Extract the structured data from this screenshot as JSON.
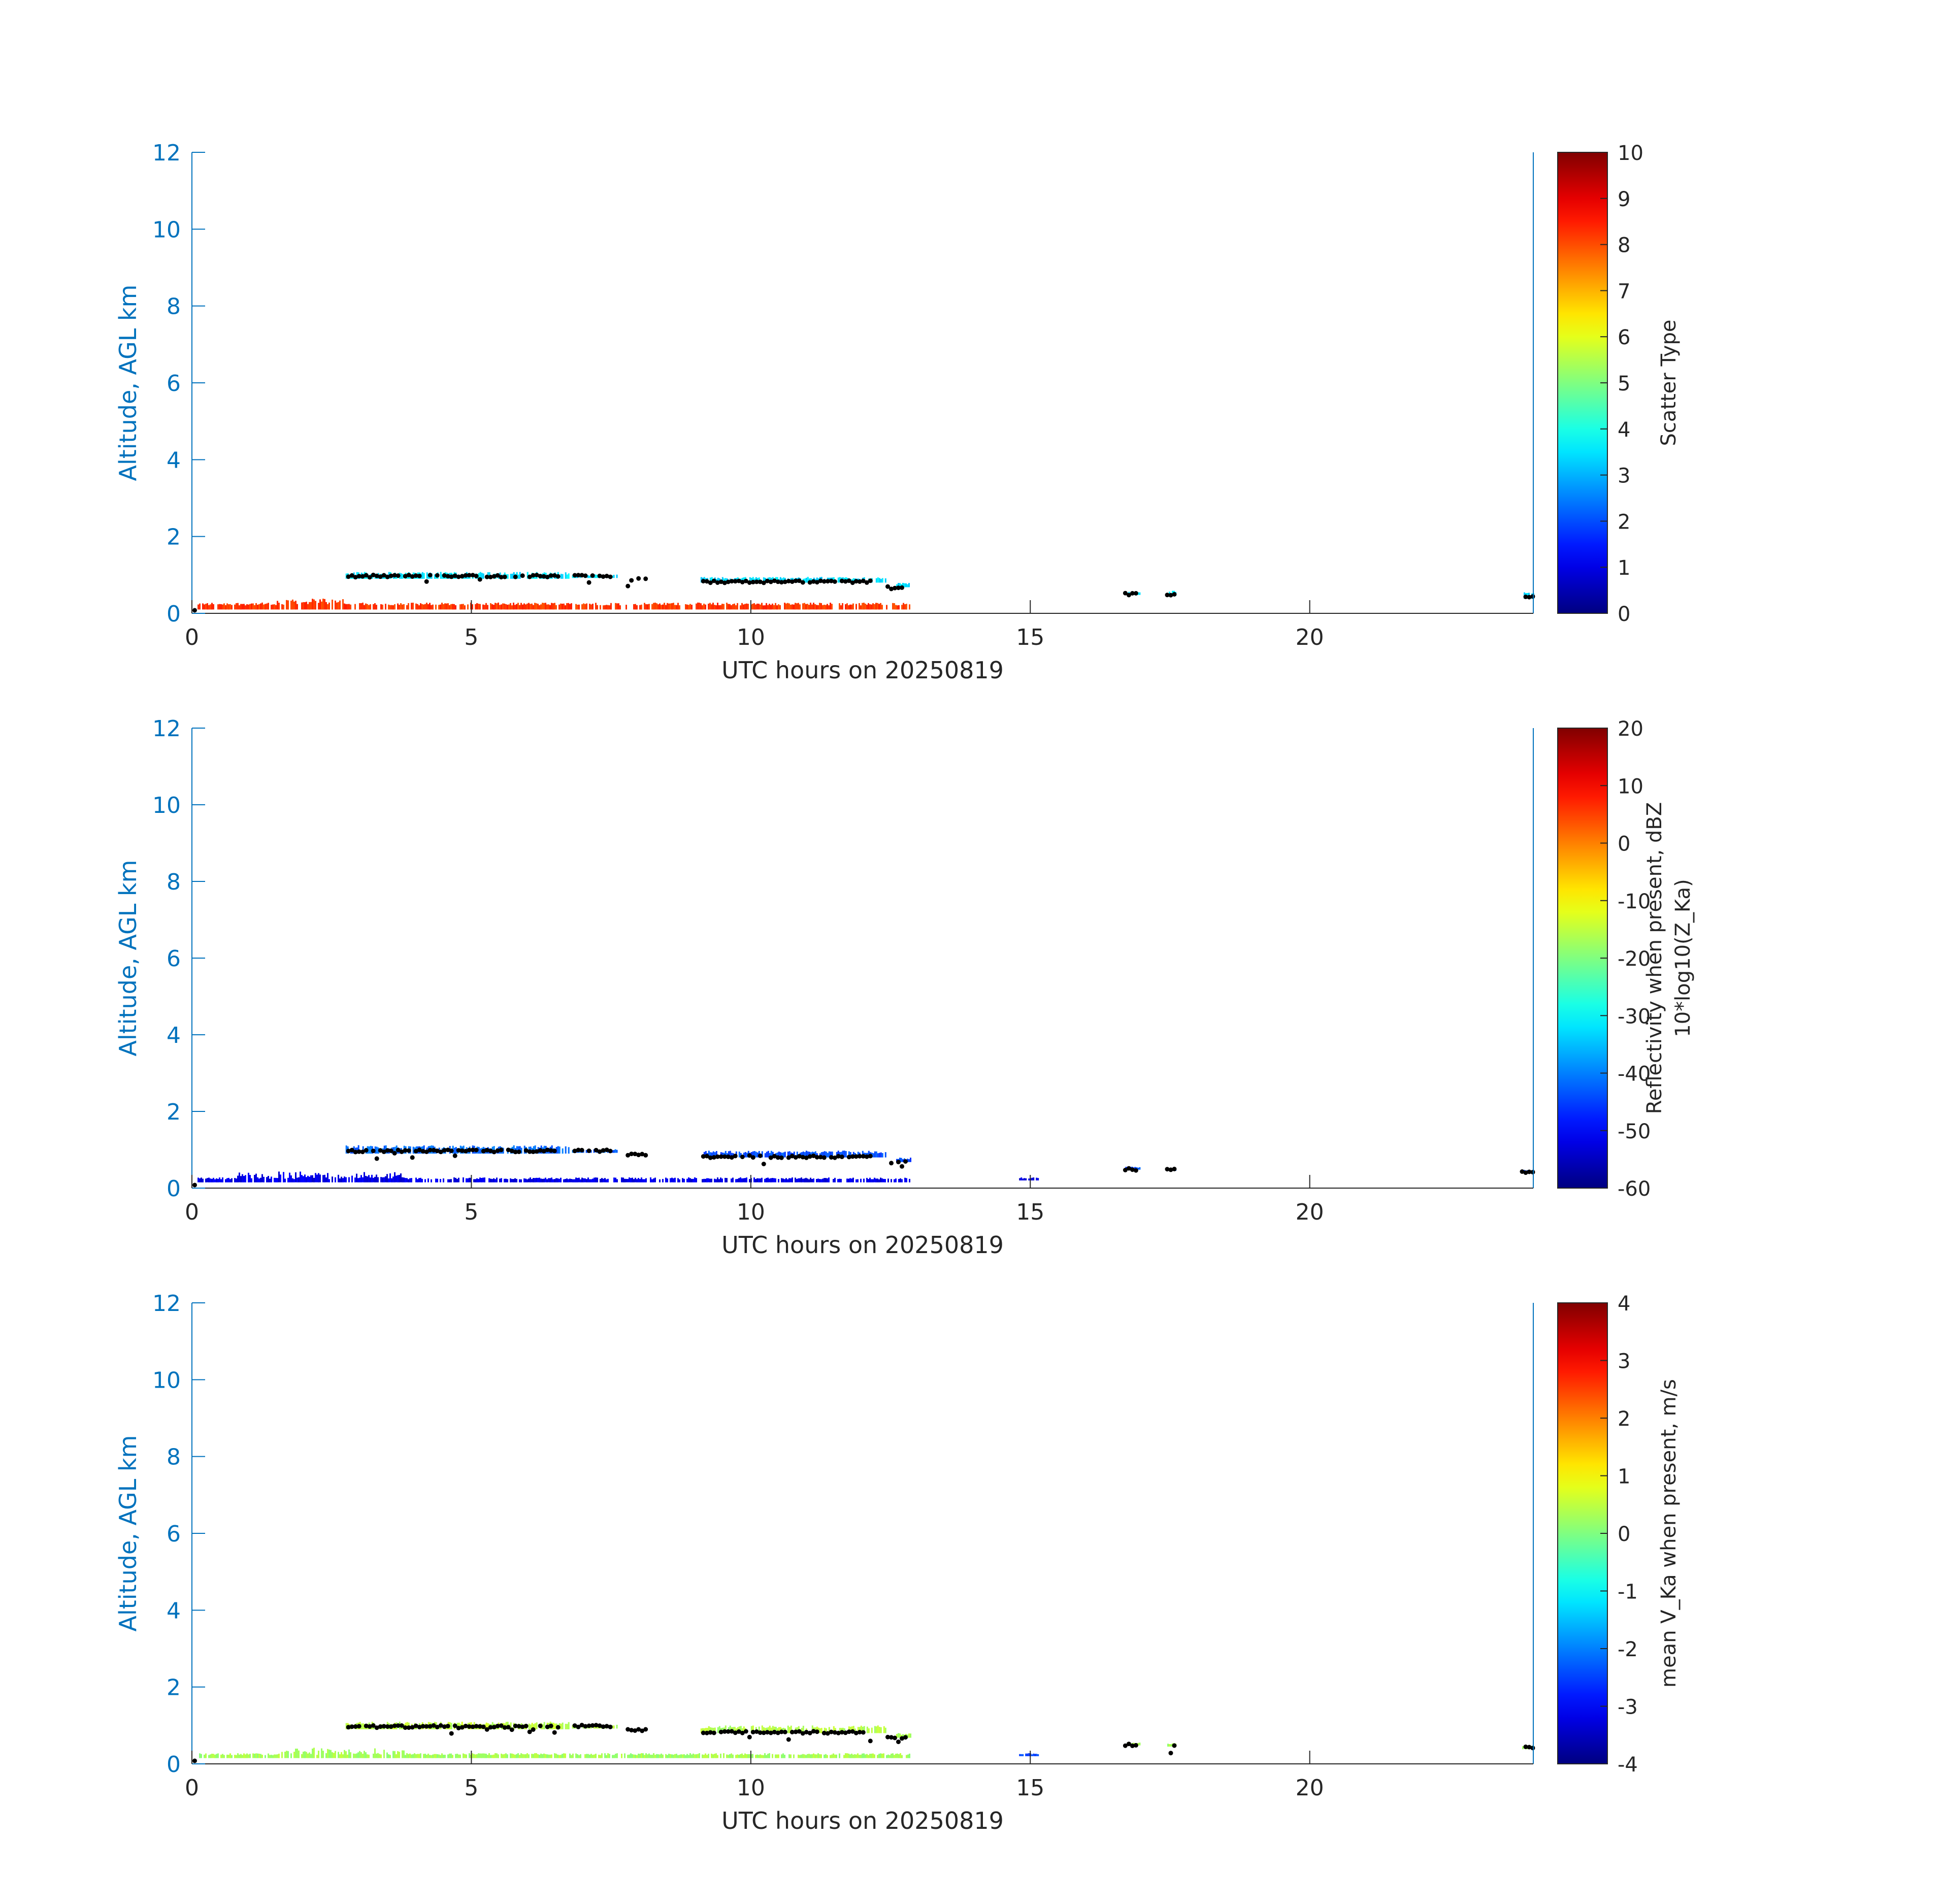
{
  "colors": {
    "axis": "#0072BD",
    "cloud_base_marker": "#000000",
    "label_dark": "#262626"
  },
  "colormap": "jet",
  "chart_data": [
    {
      "type": "heatmap",
      "xlabel": "UTC hours on 20250819",
      "ylabel": "Altitude, AGL km",
      "xlim": [
        0,
        24
      ],
      "ylim": [
        0,
        12
      ],
      "x_ticks": [
        "0",
        "5",
        "10",
        "15",
        "20"
      ],
      "y_ticks": [
        "0",
        "2",
        "4",
        "6",
        "8",
        "10",
        "12"
      ],
      "colorbar": {
        "label_lines": [
          "Scatter Type"
        ],
        "clim": [
          0,
          10
        ],
        "ticks": [
          "0",
          "1",
          "2",
          "3",
          "4",
          "5",
          "6",
          "7",
          "8",
          "9",
          "10"
        ]
      },
      "layers": [
        {
          "x_start": 0.1,
          "x_end": 12.85,
          "bottom": 0.1,
          "top": 0.28,
          "value": 8.2,
          "extra_top": [
            [
              1.5,
              2.7,
              0.42
            ]
          ]
        },
        {
          "x_start": 2.75,
          "x_end": 6.75,
          "bottom": 0.9,
          "top": 1.08,
          "value": 3.5
        },
        {
          "x_start": 6.8,
          "x_end": 7.6,
          "bottom": 0.92,
          "top": 1.02,
          "value": 3.5
        },
        {
          "x_start": 9.1,
          "x_end": 12.4,
          "bottom": 0.8,
          "top": 0.95,
          "value": 3.4
        },
        {
          "x_start": 12.6,
          "x_end": 12.85,
          "bottom": 0.68,
          "top": 0.8,
          "value": 3.4
        },
        {
          "x_start": 16.7,
          "x_end": 16.95,
          "bottom": 0.48,
          "top": 0.56,
          "value": 3.4
        },
        {
          "x_start": 17.45,
          "x_end": 17.6,
          "bottom": 0.45,
          "top": 0.6,
          "value": 3.4
        },
        {
          "x_start": 23.8,
          "x_end": 24.0,
          "bottom": 0.38,
          "top": 0.55,
          "value": 3.4
        }
      ]
    },
    {
      "type": "heatmap",
      "xlabel": "UTC hours on 20250819",
      "ylabel": "Altitude, AGL km",
      "xlim": [
        0,
        24
      ],
      "ylim": [
        0,
        12
      ],
      "x_ticks": [
        "0",
        "5",
        "10",
        "15",
        "20"
      ],
      "y_ticks": [
        "0",
        "2",
        "4",
        "6",
        "8",
        "10",
        "12"
      ],
      "colorbar": {
        "label_lines": [
          "Reflectivity when present, dBZ",
          "10*log10(Z_Ka)"
        ],
        "clim": [
          -60,
          20
        ],
        "ticks": [
          "-60",
          "-50",
          "-40",
          "-30",
          "-20",
          "-10",
          "0",
          "10",
          "20"
        ]
      },
      "layers": [
        {
          "x_start": 0.1,
          "x_end": 12.85,
          "bottom": 0.15,
          "top": 0.28,
          "value": -52,
          "extra_top": [
            [
              0.8,
              3.8,
              0.45
            ]
          ]
        },
        {
          "x_start": 2.75,
          "x_end": 6.75,
          "bottom": 0.9,
          "top": 1.12,
          "value": -42
        },
        {
          "x_start": 6.8,
          "x_end": 7.6,
          "bottom": 0.92,
          "top": 1.02,
          "value": -42
        },
        {
          "x_start": 9.1,
          "x_end": 12.4,
          "bottom": 0.8,
          "top": 0.98,
          "value": -44
        },
        {
          "x_start": 12.6,
          "x_end": 12.85,
          "bottom": 0.68,
          "top": 0.8,
          "value": -44
        },
        {
          "x_start": 14.8,
          "x_end": 15.15,
          "bottom": 0.2,
          "top": 0.28,
          "value": -52
        },
        {
          "x_start": 16.7,
          "x_end": 16.95,
          "bottom": 0.48,
          "top": 0.56,
          "value": -44
        },
        {
          "x_start": 17.45,
          "x_end": 17.6,
          "bottom": 0.45,
          "top": 0.55,
          "value": -44
        },
        {
          "x_start": 23.8,
          "x_end": 24.0,
          "bottom": 0.38,
          "top": 0.48,
          "value": -44
        }
      ]
    },
    {
      "type": "heatmap",
      "xlabel": "UTC hours on 20250819",
      "ylabel": "Altitude, AGL km",
      "xlim": [
        0,
        24
      ],
      "ylim": [
        0,
        12
      ],
      "x_ticks": [
        "0",
        "5",
        "10",
        "15",
        "20"
      ],
      "y_ticks": [
        "0",
        "2",
        "4",
        "6",
        "8",
        "10",
        "12"
      ],
      "colorbar": {
        "label_lines": [
          "mean V_Ka when present, m/s"
        ],
        "clim": [
          -4,
          4
        ],
        "ticks": [
          "-4",
          "-3",
          "-2",
          "-1",
          "0",
          "1",
          "2",
          "3",
          "4"
        ]
      },
      "layers": [
        {
          "x_start": 0.1,
          "x_end": 12.85,
          "bottom": 0.15,
          "top": 0.28,
          "value": 0.3,
          "extra_top": [
            [
              1.5,
              3.8,
              0.45
            ]
          ]
        },
        {
          "x_start": 2.75,
          "x_end": 6.75,
          "bottom": 0.9,
          "top": 1.1,
          "value": 0.5
        },
        {
          "x_start": 6.8,
          "x_end": 7.6,
          "bottom": 0.92,
          "top": 1.02,
          "value": 0.4
        },
        {
          "x_start": 9.1,
          "x_end": 12.4,
          "bottom": 0.8,
          "top": 1.0,
          "value": 0.4
        },
        {
          "x_start": 12.6,
          "x_end": 12.85,
          "bottom": 0.68,
          "top": 0.8,
          "value": 0.3
        },
        {
          "x_start": 14.8,
          "x_end": 15.15,
          "bottom": 0.2,
          "top": 0.28,
          "value": -2.5
        },
        {
          "x_start": 16.7,
          "x_end": 16.95,
          "bottom": 0.48,
          "top": 0.56,
          "value": 0.3
        },
        {
          "x_start": 17.45,
          "x_end": 17.6,
          "bottom": 0.45,
          "top": 0.55,
          "value": 0.3
        },
        {
          "x_start": 23.8,
          "x_end": 24.0,
          "bottom": 0.38,
          "top": 0.48,
          "value": 0.3
        }
      ]
    }
  ],
  "cloud_base_points": [
    {
      "x_start": 2.8,
      "x_end": 6.6,
      "y": 0.97
    },
    {
      "x_start": 6.85,
      "x_end": 7.5,
      "y": 0.98
    },
    {
      "x_start": 7.8,
      "x_end": 8.15,
      "y": 0.88
    },
    {
      "x_start": 9.15,
      "x_end": 12.2,
      "y": 0.82
    },
    {
      "x_start": 12.45,
      "x_end": 12.8,
      "y": 0.68
    },
    {
      "x_start": 16.7,
      "x_end": 16.95,
      "y": 0.5
    },
    {
      "x_start": 17.45,
      "x_end": 17.6,
      "y": 0.47
    },
    {
      "x_start": 23.8,
      "x_end": 24.0,
      "y": 0.43
    }
  ]
}
